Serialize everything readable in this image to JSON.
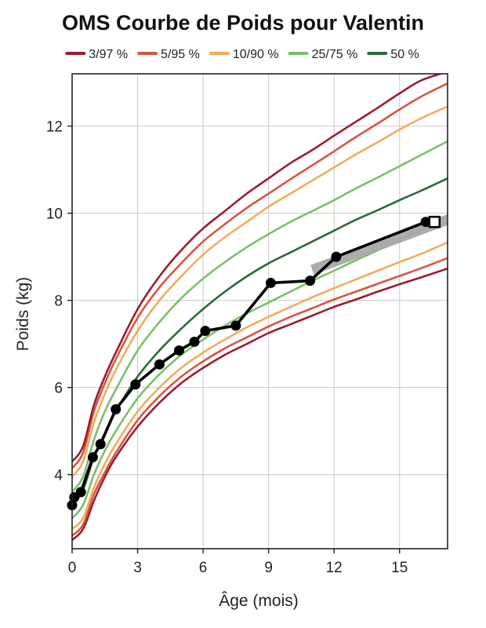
{
  "chart_data": {
    "type": "line",
    "title": "OMS Courbe de Poids pour Valentin",
    "xlabel": "Âge (mois)",
    "ylabel": "Poids (kg)",
    "xlim": [
      0,
      17.2
    ],
    "ylim": [
      2.3,
      13.2
    ],
    "x_ticks": [
      0,
      3,
      6,
      9,
      12,
      15
    ],
    "y_ticks": [
      4,
      6,
      8,
      10,
      12
    ],
    "grid": true,
    "legend_position": "top",
    "legend": [
      {
        "label": "3/97 %",
        "color": "#9b1d2e"
      },
      {
        "label": "5/95 %",
        "color": "#d9553f"
      },
      {
        "label": "10/90 %",
        "color": "#f1ac5c"
      },
      {
        "label": "25/75 %",
        "color": "#7bbf6a"
      },
      {
        "label": "50 %",
        "color": "#2b6a3c"
      }
    ],
    "percentile_x": [
      0,
      0.5,
      1,
      1.5,
      2,
      3,
      4,
      5,
      6,
      7,
      8,
      9,
      10,
      11,
      12,
      13,
      14,
      15,
      16,
      17.2
    ],
    "percentiles": [
      {
        "name": "P3",
        "group": "3/97 %",
        "color": "#9b1d2e",
        "values": [
          2.5,
          2.75,
          3.4,
          3.95,
          4.4,
          5.1,
          5.65,
          6.1,
          6.45,
          6.75,
          7.0,
          7.25,
          7.45,
          7.65,
          7.85,
          8.02,
          8.2,
          8.37,
          8.53,
          8.73
        ]
      },
      {
        "name": "P5",
        "group": "5/95 %",
        "color": "#d9553f",
        "values": [
          2.6,
          2.85,
          3.55,
          4.05,
          4.5,
          5.25,
          5.8,
          6.25,
          6.6,
          6.9,
          7.15,
          7.4,
          7.62,
          7.82,
          8.02,
          8.2,
          8.38,
          8.56,
          8.74,
          8.97
        ]
      },
      {
        "name": "P10",
        "group": "10/90 %",
        "color": "#f1ac5c",
        "values": [
          2.75,
          3.0,
          3.7,
          4.25,
          4.7,
          5.45,
          6.0,
          6.45,
          6.8,
          7.1,
          7.38,
          7.62,
          7.85,
          8.07,
          8.28,
          8.48,
          8.68,
          8.88,
          9.07,
          9.33
        ]
      },
      {
        "name": "P25",
        "group": "25/75 %",
        "color": "#7bbf6a",
        "values": [
          3.0,
          3.3,
          4.0,
          4.55,
          5.0,
          5.75,
          6.3,
          6.75,
          7.1,
          7.42,
          7.7,
          7.95,
          8.2,
          8.45,
          8.68,
          8.92,
          9.15,
          9.4,
          9.62,
          9.95
        ]
      },
      {
        "name": "P50",
        "group": "50 %",
        "color": "#2b6a3c",
        "values": [
          3.3,
          3.65,
          4.4,
          4.95,
          5.45,
          6.25,
          6.85,
          7.35,
          7.8,
          8.2,
          8.55,
          8.85,
          9.1,
          9.35,
          9.6,
          9.85,
          10.07,
          10.3,
          10.52,
          10.8
        ]
      },
      {
        "name": "P75",
        "group": "25/75 %",
        "color": "#7bbf6a",
        "values": [
          3.6,
          3.95,
          4.8,
          5.45,
          5.95,
          6.85,
          7.5,
          8.05,
          8.5,
          8.88,
          9.22,
          9.52,
          9.8,
          10.05,
          10.3,
          10.57,
          10.82,
          11.08,
          11.34,
          11.65
        ]
      },
      {
        "name": "P90",
        "group": "10/90 %",
        "color": "#f1ac5c",
        "values": [
          3.95,
          4.3,
          5.2,
          5.85,
          6.4,
          7.3,
          8.0,
          8.55,
          9.05,
          9.45,
          9.8,
          10.15,
          10.45,
          10.75,
          11.05,
          11.35,
          11.63,
          11.92,
          12.18,
          12.45
        ]
      },
      {
        "name": "P95",
        "group": "5/95 %",
        "color": "#d9553f",
        "values": [
          4.15,
          4.5,
          5.45,
          6.1,
          6.65,
          7.6,
          8.3,
          8.85,
          9.35,
          9.75,
          10.12,
          10.45,
          10.78,
          11.1,
          11.42,
          11.75,
          12.06,
          12.38,
          12.68,
          12.98
        ]
      },
      {
        "name": "P97",
        "group": "3/97 %",
        "color": "#9b1d2e",
        "values": [
          4.3,
          4.65,
          5.6,
          6.25,
          6.8,
          7.8,
          8.55,
          9.15,
          9.65,
          10.05,
          10.45,
          10.8,
          11.15,
          11.45,
          11.78,
          12.1,
          12.42,
          12.75,
          13.05,
          13.25
        ]
      }
    ],
    "series": [
      {
        "name": "Valentin",
        "color": "#000000",
        "points": [
          [
            0,
            3.3
          ],
          [
            0.1,
            3.48
          ],
          [
            0.4,
            3.6
          ],
          [
            0.95,
            4.4
          ],
          [
            1.3,
            4.7
          ],
          [
            2.0,
            5.5
          ],
          [
            2.9,
            6.07
          ],
          [
            4.0,
            6.53
          ],
          [
            4.9,
            6.85
          ],
          [
            5.6,
            7.05
          ],
          [
            6.1,
            7.3
          ],
          [
            7.5,
            7.42
          ],
          [
            9.1,
            8.4
          ],
          [
            10.9,
            8.45
          ],
          [
            12.1,
            9.0
          ],
          [
            16.2,
            9.8
          ],
          [
            16.6,
            9.8
          ]
        ],
        "last_point_marker": "square"
      }
    ],
    "trend_band": {
      "x": [
        11.0,
        17.2
      ],
      "y": [
        8.7,
        9.85
      ],
      "color": "#a8a8a8"
    }
  }
}
